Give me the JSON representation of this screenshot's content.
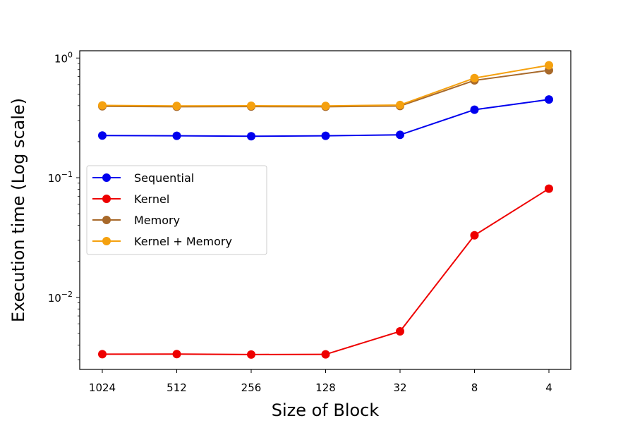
{
  "chart_data": {
    "type": "line",
    "title": "",
    "xlabel": "Size of Block",
    "ylabel": "Execution time (Log scale)",
    "categories": [
      "1024",
      "512",
      "256",
      "128",
      "32",
      "8",
      "4"
    ],
    "y_scale": "log",
    "ylim": [
      0.0025,
      1.15
    ],
    "y_ticks": [
      {
        "value": 1,
        "base": "10",
        "exp": "0"
      },
      {
        "value": 0.1,
        "base": "10",
        "exp": "−1"
      },
      {
        "value": 0.01,
        "base": "10",
        "exp": "−2"
      }
    ],
    "grid": false,
    "legend_position": "center-left",
    "series": [
      {
        "name": "Sequential",
        "color": "#0000ee",
        "values": [
          0.225,
          0.224,
          0.222,
          0.224,
          0.228,
          0.37,
          0.45
        ]
      },
      {
        "name": "Kernel",
        "color": "#ee0000",
        "values": [
          0.00335,
          0.00336,
          0.00333,
          0.00334,
          0.0052,
          0.033,
          0.081
        ]
      },
      {
        "name": "Memory",
        "color": "#a8692a",
        "values": [
          0.395,
          0.392,
          0.393,
          0.392,
          0.397,
          0.65,
          0.79
        ]
      },
      {
        "name": "Kernel + Memory",
        "color": "#f5a10f",
        "values": [
          0.402,
          0.398,
          0.399,
          0.398,
          0.405,
          0.68,
          0.87
        ]
      }
    ]
  }
}
